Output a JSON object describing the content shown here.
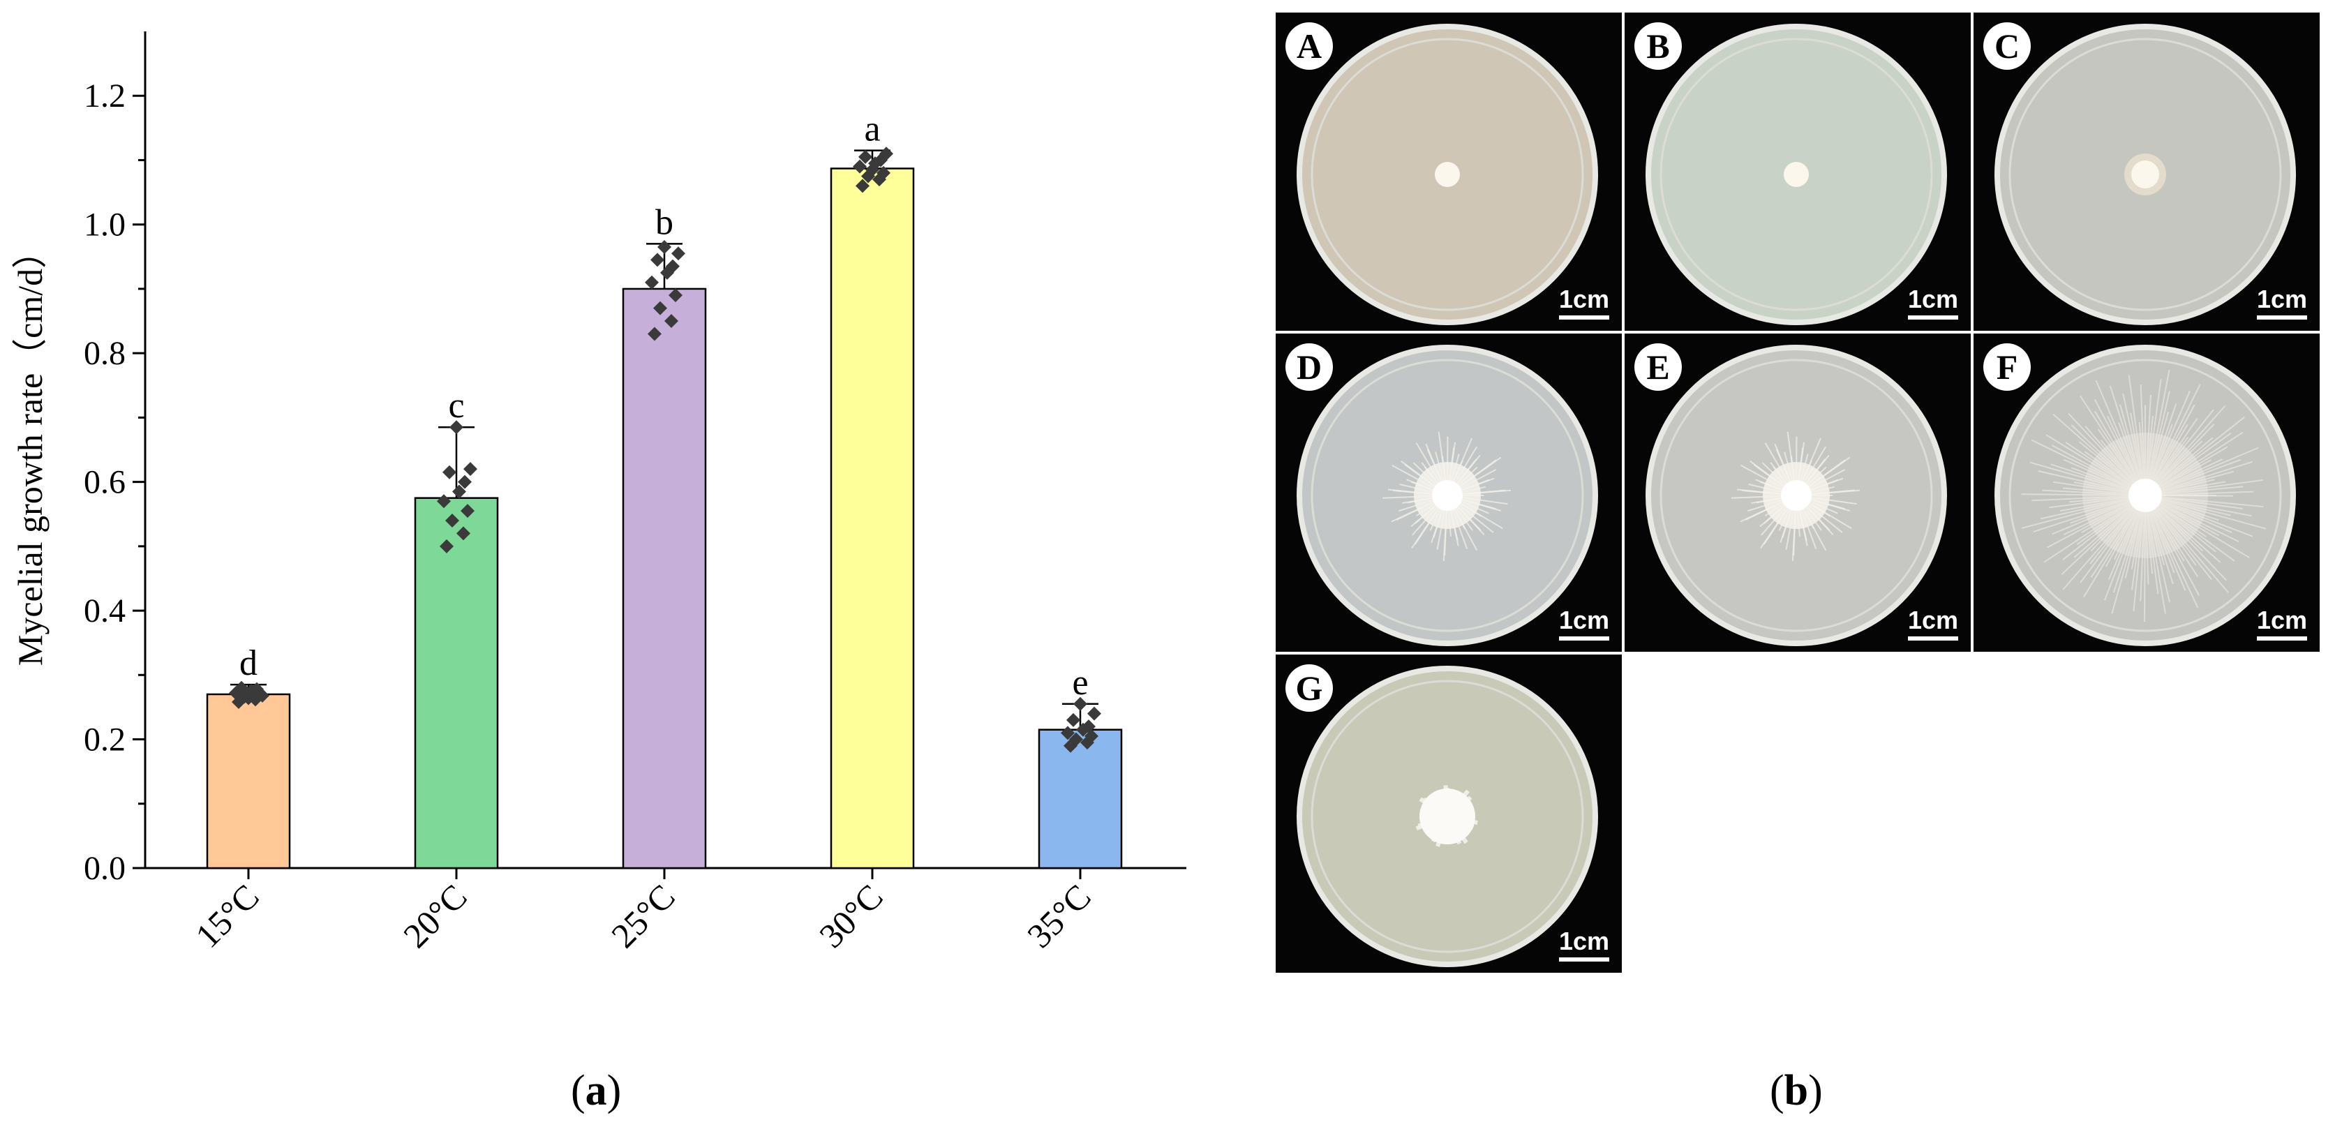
{
  "chart_data": {
    "type": "bar",
    "categories": [
      "15°C",
      "20°C",
      "25°C",
      "30°C",
      "35°C"
    ],
    "values": [
      0.27,
      0.575,
      0.9,
      1.087,
      0.215
    ],
    "error": [
      0.015,
      0.11,
      0.07,
      0.028,
      0.04
    ],
    "significance_letters": [
      "d",
      "c",
      "b",
      "a",
      "e"
    ],
    "colors": [
      "#FFC896",
      "#7ED898",
      "#C6AFD9",
      "#FFFF99",
      "#8AB8EE"
    ],
    "points": [
      [
        0.258,
        0.262,
        0.266,
        0.27,
        0.272,
        0.275,
        0.278,
        0.28,
        0.268,
        0.264
      ],
      [
        0.5,
        0.52,
        0.54,
        0.555,
        0.57,
        0.585,
        0.6,
        0.615,
        0.62,
        0.685
      ],
      [
        0.83,
        0.85,
        0.87,
        0.89,
        0.91,
        0.925,
        0.935,
        0.945,
        0.955,
        0.965
      ],
      [
        1.06,
        1.07,
        1.075,
        1.08,
        1.09,
        1.095,
        1.1,
        1.105,
        1.11,
        1.085
      ],
      [
        0.19,
        0.195,
        0.2,
        0.205,
        0.21,
        0.215,
        0.22,
        0.23,
        0.24,
        0.255
      ]
    ],
    "ylabel": "Mycelial growth rate（cm/d）",
    "xlabel": "",
    "ylim": [
      0,
      1.3
    ],
    "yticks": [
      "0.0",
      "0.2",
      "0.4",
      "0.6",
      "0.8",
      "1.0",
      "1.2"
    ]
  },
  "captions": {
    "a_open": "(",
    "a_letter": "a",
    "a_close": ")",
    "b_open": "(",
    "b_letter": "b",
    "b_close": ")"
  },
  "plates": [
    {
      "label": "A",
      "scale": "1cm",
      "growth": "none"
    },
    {
      "label": "B",
      "scale": "1cm",
      "growth": "none"
    },
    {
      "label": "C",
      "scale": "1cm",
      "growth": "slight"
    },
    {
      "label": "D",
      "scale": "1cm",
      "growth": "moderate"
    },
    {
      "label": "E",
      "scale": "1cm",
      "growth": "moderate"
    },
    {
      "label": "F",
      "scale": "1cm",
      "growth": "extensive"
    },
    {
      "label": "G",
      "scale": "1cm",
      "growth": "compact"
    }
  ]
}
